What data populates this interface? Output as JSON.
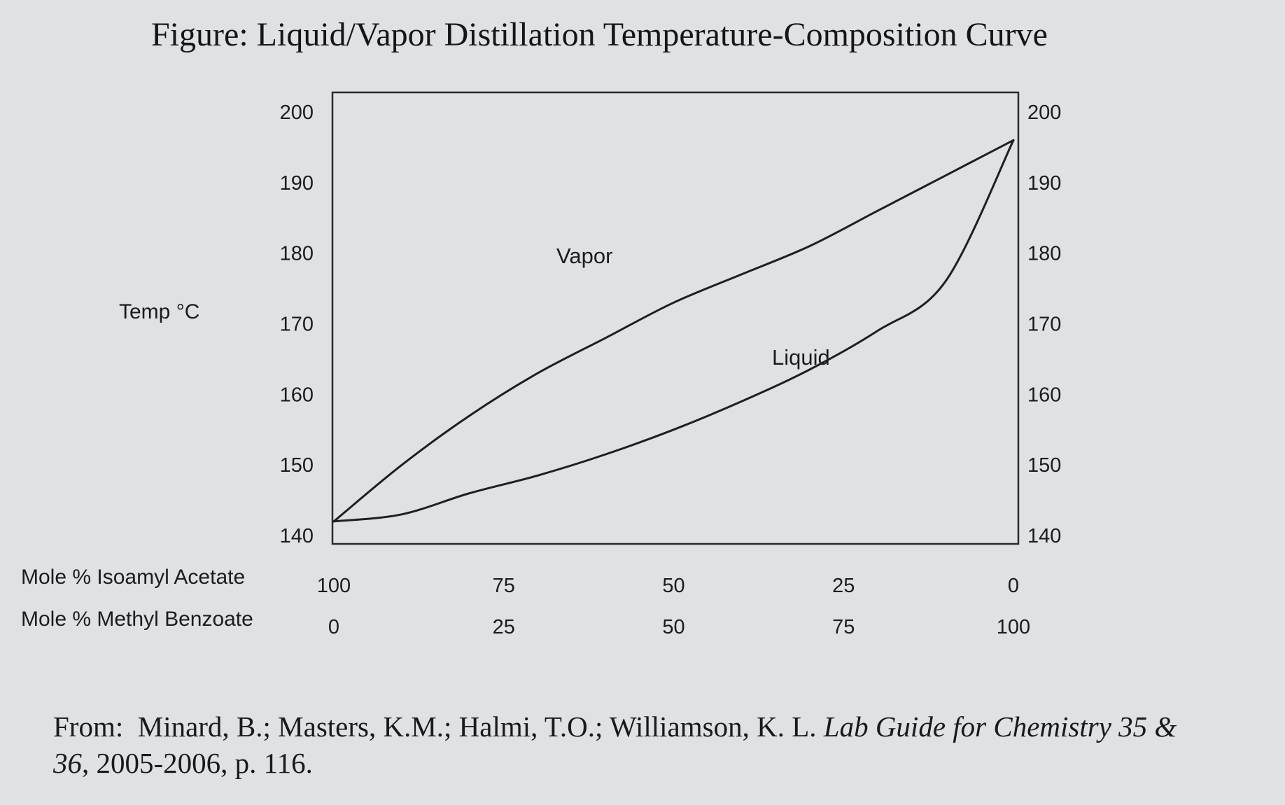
{
  "title": "Figure: Liquid/Vapor Distillation Temperature-Composition Curve",
  "chart_data": {
    "type": "line",
    "title": "Figure: Liquid/Vapor Distillation Temperature-Composition Curve",
    "ylabel": "Temp °C",
    "ylim": [
      140,
      200
    ],
    "yticks": [
      "200",
      "190",
      "180",
      "170",
      "160",
      "150",
      "140"
    ],
    "ytick_values": [
      200,
      190,
      180,
      170,
      160,
      150,
      140
    ],
    "right_axis_ticks": [
      "200",
      "190",
      "180",
      "170",
      "160",
      "150",
      "140"
    ],
    "xlim": [
      0,
      100
    ],
    "x_axis_1": {
      "label": "Mole % Isoamyl Acetate",
      "ticks": [
        "100",
        "75",
        "50",
        "25",
        "0"
      ]
    },
    "x_axis_2": {
      "label": "Mole % Methyl Benzoate",
      "ticks": [
        "0",
        "25",
        "50",
        "75",
        "100"
      ]
    },
    "x": [
      0,
      10,
      20,
      30,
      40,
      50,
      60,
      70,
      80,
      90,
      100
    ],
    "series": [
      {
        "name": "Vapor",
        "x": [
          0,
          10,
          20,
          30,
          40,
          50,
          60,
          70,
          80,
          90,
          100
        ],
        "values": [
          142,
          150,
          157,
          163,
          168,
          173,
          177,
          181,
          186,
          191,
          196
        ]
      },
      {
        "name": "Liquid",
        "x": [
          0,
          10,
          20,
          30,
          40,
          50,
          60,
          70,
          80,
          90,
          100
        ],
        "values": [
          142,
          143,
          146,
          148.5,
          151.5,
          155,
          159,
          163.5,
          169,
          176,
          196
        ]
      }
    ],
    "grid": false,
    "legend": "none"
  },
  "source": {
    "prefix": "From:  Minard, B.; Masters, K.M.; Halmi, T.O.; Williamson, K. L. ",
    "italic_line1": "Lab Guide for Chemistry 35 &",
    "italic_line2": "36",
    "suffix": ", 2005-2006, p. 116."
  }
}
